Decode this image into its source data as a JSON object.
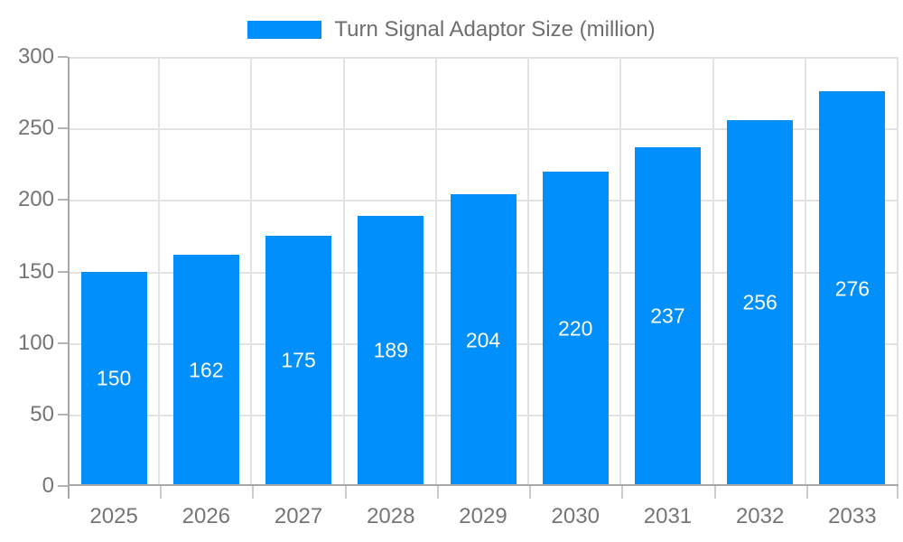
{
  "chart_data": {
    "type": "bar",
    "title": "Turn Signal Adaptor Size (million)",
    "categories": [
      "2025",
      "2026",
      "2027",
      "2028",
      "2029",
      "2030",
      "2031",
      "2032",
      "2033"
    ],
    "values": [
      150,
      162,
      175,
      189,
      204,
      220,
      237,
      256,
      276
    ],
    "xlabel": "",
    "ylabel": "",
    "ylim": [
      0,
      300
    ],
    "yticks": [
      0,
      50,
      100,
      150,
      200,
      250,
      300
    ],
    "grid": true,
    "legend_position": "top-center",
    "bar_color": "#008FFB",
    "value_label_color": "#ffffff",
    "axis_label_color": "#757575",
    "gridline_color": "#e2e2e2",
    "axis_line_color": "#a8a8a8"
  }
}
